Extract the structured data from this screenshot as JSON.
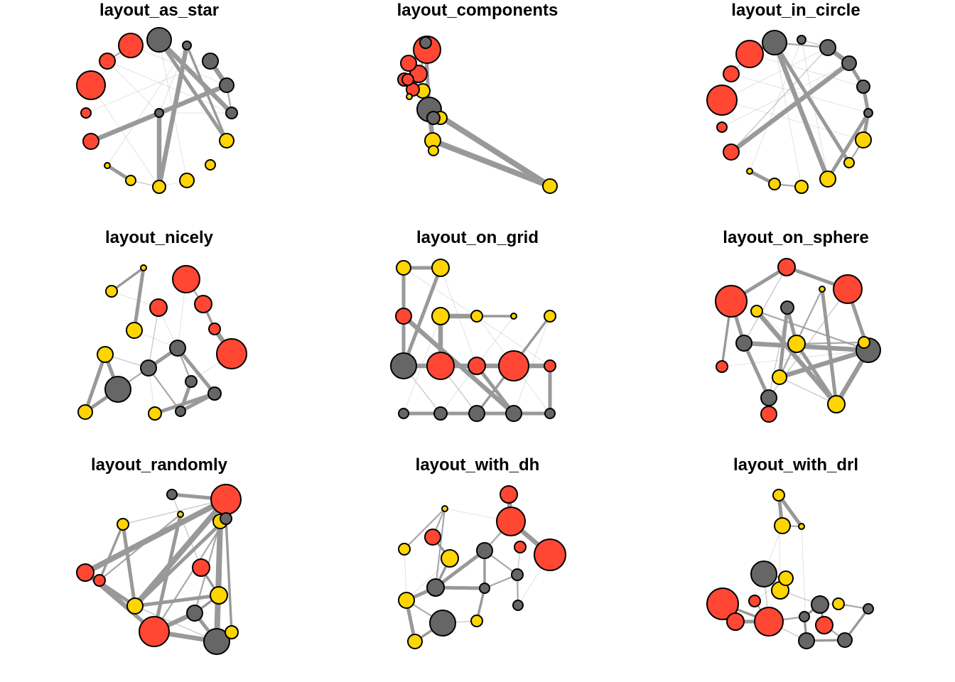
{
  "colors": {
    "red": "#FF4733",
    "yellow": "#FFD500",
    "gray": "#666666",
    "edge": "#999999",
    "background": "#FFFFFF"
  },
  "panels": [
    {
      "title": "layout_as_star",
      "nodes": [
        {
          "c": "red",
          "r": 17
        },
        {
          "c": "red",
          "r": 11
        },
        {
          "c": "red",
          "r": 20
        },
        {
          "c": "red",
          "r": 7
        },
        {
          "c": "red",
          "r": 11
        },
        {
          "c": "yellow",
          "r": 10
        },
        {
          "c": "yellow",
          "r": 7
        },
        {
          "c": "yellow",
          "r": 4
        },
        {
          "c": "yellow",
          "r": 7
        },
        {
          "c": "yellow",
          "r": 9
        },
        {
          "c": "yellow",
          "r": 10
        },
        {
          "c": "gray",
          "r": 17
        },
        {
          "c": "gray",
          "r": 6
        },
        {
          "c": "gray",
          "r": 11
        },
        {
          "c": "gray",
          "r": 10
        },
        {
          "c": "gray",
          "r": 8
        },
        {
          "c": "gray",
          "r": 6
        }
      ]
    },
    {
      "title": "layout_components",
      "nodes": [
        {
          "c": "red",
          "r": 19
        },
        {
          "c": "red",
          "r": 11
        },
        {
          "c": "red",
          "r": 12
        },
        {
          "c": "red",
          "r": 8
        },
        {
          "c": "red",
          "r": 9
        },
        {
          "c": "red",
          "r": 9
        },
        {
          "c": "yellow",
          "r": 10
        },
        {
          "c": "yellow",
          "r": 9
        },
        {
          "c": "yellow",
          "r": 11
        },
        {
          "c": "yellow",
          "r": 7
        },
        {
          "c": "yellow",
          "r": 10
        },
        {
          "c": "yellow",
          "r": 4
        },
        {
          "c": "gray",
          "r": 17
        },
        {
          "c": "gray",
          "r": 9
        },
        {
          "c": "gray",
          "r": 8
        }
      ]
    },
    {
      "title": "layout_in_circle",
      "nodes": [
        {
          "c": "red",
          "r": 19
        },
        {
          "c": "red",
          "r": 11
        },
        {
          "c": "red",
          "r": 21
        },
        {
          "c": "red",
          "r": 7
        },
        {
          "c": "red",
          "r": 11
        },
        {
          "c": "yellow",
          "r": 11
        },
        {
          "c": "yellow",
          "r": 7
        },
        {
          "c": "yellow",
          "r": 4
        },
        {
          "c": "yellow",
          "r": 8
        },
        {
          "c": "yellow",
          "r": 9
        },
        {
          "c": "yellow",
          "r": 11
        },
        {
          "c": "gray",
          "r": 17
        },
        {
          "c": "gray",
          "r": 6
        },
        {
          "c": "gray",
          "r": 11
        },
        {
          "c": "gray",
          "r": 10
        },
        {
          "c": "gray",
          "r": 9
        },
        {
          "c": "gray",
          "r": 6
        }
      ]
    },
    {
      "title": "layout_nicely",
      "nodes": [
        {
          "c": "red",
          "r": 19
        },
        {
          "c": "red",
          "r": 12
        },
        {
          "c": "red",
          "r": 12
        },
        {
          "c": "red",
          "r": 8
        },
        {
          "c": "red",
          "r": 21
        },
        {
          "c": "yellow",
          "r": 4
        },
        {
          "c": "yellow",
          "r": 8
        },
        {
          "c": "yellow",
          "r": 11
        },
        {
          "c": "yellow",
          "r": 11
        },
        {
          "c": "yellow",
          "r": 10
        },
        {
          "c": "yellow",
          "r": 9
        },
        {
          "c": "gray",
          "r": 11
        },
        {
          "c": "gray",
          "r": 11
        },
        {
          "c": "gray",
          "r": 18
        },
        {
          "c": "gray",
          "r": 8
        },
        {
          "c": "gray",
          "r": 9
        },
        {
          "c": "gray",
          "r": 7
        }
      ]
    },
    {
      "title": "layout_on_grid",
      "nodes": [
        {
          "c": "yellow",
          "r": 10
        },
        {
          "c": "yellow",
          "r": 12
        },
        {
          "c": "red",
          "r": 11
        },
        {
          "c": "yellow",
          "r": 12
        },
        {
          "c": "yellow",
          "r": 8
        },
        {
          "c": "yellow",
          "r": 4
        },
        {
          "c": "yellow",
          "r": 8
        },
        {
          "c": "gray",
          "r": 18
        },
        {
          "c": "red",
          "r": 19
        },
        {
          "c": "red",
          "r": 12
        },
        {
          "c": "red",
          "r": 21
        },
        {
          "c": "red",
          "r": 8
        },
        {
          "c": "gray",
          "r": 7
        },
        {
          "c": "gray",
          "r": 9
        },
        {
          "c": "gray",
          "r": 11
        },
        {
          "c": "gray",
          "r": 11
        },
        {
          "c": "gray",
          "r": 7
        }
      ]
    },
    {
      "title": "layout_on_sphere",
      "nodes": [
        {
          "c": "red",
          "r": 12
        },
        {
          "c": "yellow",
          "r": 4
        },
        {
          "c": "red",
          "r": 20
        },
        {
          "c": "red",
          "r": 22
        },
        {
          "c": "yellow",
          "r": 8
        },
        {
          "c": "gray",
          "r": 9
        },
        {
          "c": "gray",
          "r": 11
        },
        {
          "c": "yellow",
          "r": 12
        },
        {
          "c": "yellow",
          "r": 8
        },
        {
          "c": "gray",
          "r": 17
        },
        {
          "c": "red",
          "r": 8
        },
        {
          "c": "yellow",
          "r": 10
        },
        {
          "c": "gray",
          "r": 11
        },
        {
          "c": "yellow",
          "r": 12
        },
        {
          "c": "red",
          "r": 11
        }
      ]
    },
    {
      "title": "layout_randomly",
      "nodes": [
        {
          "c": "gray",
          "r": 7
        },
        {
          "c": "red",
          "r": 21
        },
        {
          "c": "yellow",
          "r": 4
        },
        {
          "c": "yellow",
          "r": 8
        },
        {
          "c": "yellow",
          "r": 10
        },
        {
          "c": "gray",
          "r": 8
        },
        {
          "c": "red",
          "r": 12
        },
        {
          "c": "red",
          "r": 8
        },
        {
          "c": "red",
          "r": 12
        },
        {
          "c": "yellow",
          "r": 12
        },
        {
          "c": "yellow",
          "r": 11
        },
        {
          "c": "gray",
          "r": 11
        },
        {
          "c": "red",
          "r": 21
        },
        {
          "c": "gray",
          "r": 18
        },
        {
          "c": "yellow",
          "r": 9
        }
      ]
    },
    {
      "title": "layout_with_dh",
      "nodes": [
        {
          "c": "red",
          "r": 12
        },
        {
          "c": "yellow",
          "r": 4
        },
        {
          "c": "red",
          "r": 20
        },
        {
          "c": "red",
          "r": 11
        },
        {
          "c": "yellow",
          "r": 8
        },
        {
          "c": "gray",
          "r": 11
        },
        {
          "c": "red",
          "r": 8
        },
        {
          "c": "red",
          "r": 22
        },
        {
          "c": "yellow",
          "r": 12
        },
        {
          "c": "gray",
          "r": 8
        },
        {
          "c": "gray",
          "r": 12
        },
        {
          "c": "gray",
          "r": 7
        },
        {
          "c": "yellow",
          "r": 11
        },
        {
          "c": "gray",
          "r": 7
        },
        {
          "c": "gray",
          "r": 18
        },
        {
          "c": "yellow",
          "r": 8
        },
        {
          "c": "yellow",
          "r": 10
        }
      ]
    },
    {
      "title": "layout_with_drl",
      "nodes": [
        {
          "c": "yellow",
          "r": 8
        },
        {
          "c": "yellow",
          "r": 11
        },
        {
          "c": "yellow",
          "r": 4
        },
        {
          "c": "gray",
          "r": 18
        },
        {
          "c": "yellow",
          "r": 10
        },
        {
          "c": "yellow",
          "r": 12
        },
        {
          "c": "red",
          "r": 22
        },
        {
          "c": "red",
          "r": 8
        },
        {
          "c": "gray",
          "r": 12
        },
        {
          "c": "yellow",
          "r": 8
        },
        {
          "c": "gray",
          "r": 7
        },
        {
          "c": "red",
          "r": 12
        },
        {
          "c": "red",
          "r": 20
        },
        {
          "c": "gray",
          "r": 7
        },
        {
          "c": "red",
          "r": 12
        },
        {
          "c": "gray",
          "r": 11
        },
        {
          "c": "gray",
          "r": 10
        }
      ]
    }
  ]
}
